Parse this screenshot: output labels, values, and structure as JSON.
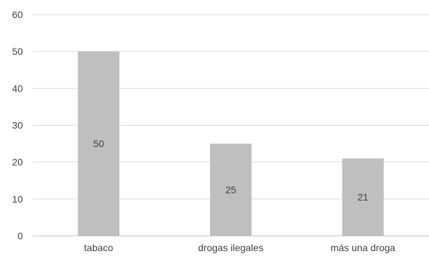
{
  "chart_data": {
    "type": "bar",
    "categories": [
      "tabaco",
      "drogas ilegales",
      "más una droga"
    ],
    "values": [
      50,
      25,
      21
    ],
    "data_labels": [
      "50",
      "25",
      "21"
    ],
    "title": "",
    "xlabel": "",
    "ylabel": "",
    "ylim": [
      0,
      60
    ],
    "yticks": [
      0,
      10,
      20,
      30,
      40,
      50,
      60
    ],
    "ytick_labels": [
      "0",
      "10",
      "20",
      "30",
      "40",
      "50",
      "60"
    ],
    "grid": true,
    "legend": "none",
    "colors": {
      "bar": "#bfbfbf",
      "grid": "#d9d9d9",
      "axis": "#bfbfbf",
      "text": "#404040"
    }
  }
}
